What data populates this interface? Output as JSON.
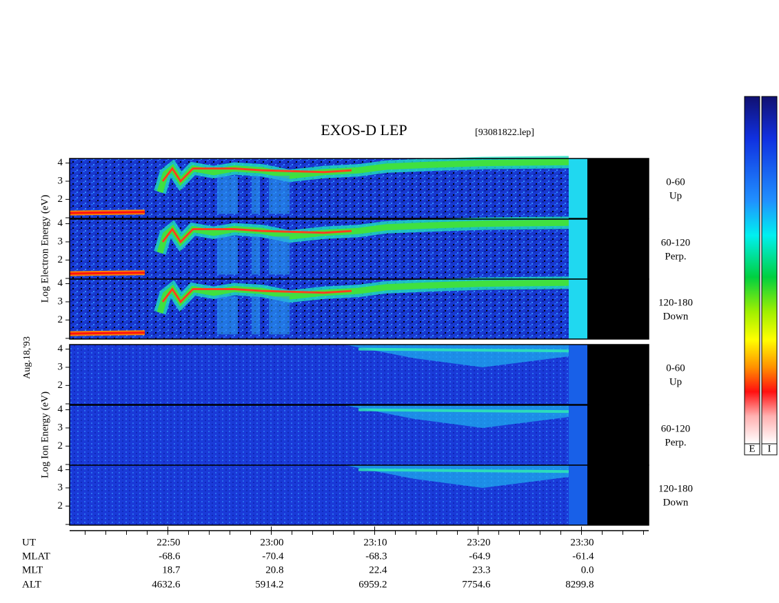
{
  "chart_data": {
    "type": "spectrogram",
    "title": "EXOS-D LEP",
    "file": "[93081822.lep]",
    "date_label": "Aug.18,'93",
    "electron_axis_label": "Log Electron Energy (eV)",
    "ion_axis_label": "Log Ion Energy (eV)",
    "ylim": [
      0.95,
      4.25
    ],
    "yticks": [
      2,
      3,
      4
    ],
    "xlim": [
      40.5,
      96.5
    ],
    "xticks": [
      {
        "value": 50,
        "label": "22:50"
      },
      {
        "value": 60,
        "label": "23:00"
      },
      {
        "value": 70,
        "label": "23:10"
      },
      {
        "value": 80,
        "label": "23:20"
      },
      {
        "value": 90,
        "label": "23:30"
      }
    ],
    "panels": [
      {
        "species": "electron",
        "range": "0-60",
        "direction": "Up"
      },
      {
        "species": "electron",
        "range": "60-120",
        "direction": "Perp."
      },
      {
        "species": "electron",
        "range": "120-180",
        "direction": "Down"
      },
      {
        "species": "ion",
        "range": "0-60",
        "direction": "Up"
      },
      {
        "species": "ion",
        "range": "60-120",
        "direction": "Perp."
      },
      {
        "species": "ion",
        "range": "120-180",
        "direction": "Down"
      }
    ],
    "orbit_rows": [
      {
        "name": "UT"
      },
      {
        "name": "MLAT",
        "values": [
          "-68.6",
          "-70.4",
          "-68.3",
          "-64.9",
          "-61.4"
        ]
      },
      {
        "name": "MLT",
        "values": [
          "18.7",
          "20.8",
          "22.4",
          "23.3",
          "0.0"
        ]
      },
      {
        "name": "ALT",
        "values": [
          "4632.6",
          "5914.2",
          "6959.2",
          "7754.6",
          "8299.8"
        ]
      }
    ],
    "colorbars": [
      "E",
      "I"
    ]
  }
}
